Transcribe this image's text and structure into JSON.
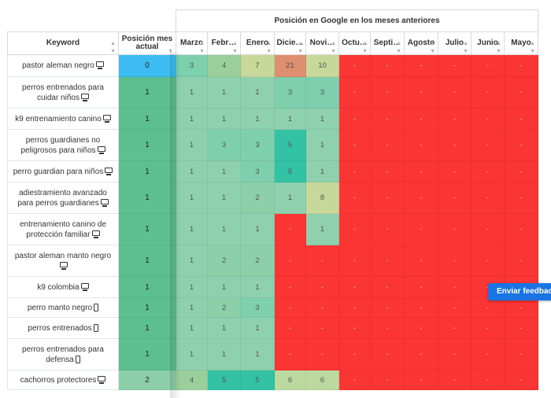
{
  "group_title": "Posición en Google en los meses anteriores",
  "headers": {
    "keyword": "Keyword",
    "current": "Posición mes actual",
    "months": [
      "Marzo",
      "Febr…",
      "Enero",
      "Dicie…",
      "Novi…",
      "Octu…",
      "Septi…",
      "Agosto",
      "Julio",
      "Junio",
      "Mayo"
    ]
  },
  "rows": [
    {
      "keyword": "pastor aleman negro",
      "device": "desktop",
      "current": "0",
      "values": [
        "3",
        "4",
        "7",
        "21",
        "10",
        "-",
        "-",
        "-",
        "-",
        "-",
        "-"
      ]
    },
    {
      "keyword": "perros entrenados para cuidar niños",
      "device": "desktop",
      "current": "1",
      "values": [
        "1",
        "1",
        "1",
        "3",
        "3",
        "-",
        "-",
        "-",
        "-",
        "-",
        "-"
      ]
    },
    {
      "keyword": "k9 entrenamiento canino",
      "device": "desktop",
      "current": "1",
      "values": [
        "1",
        "1",
        "1",
        "1",
        "1",
        "-",
        "-",
        "-",
        "-",
        "-",
        "-"
      ]
    },
    {
      "keyword": "perros guardianes no peligrosos para niños",
      "device": "desktop",
      "current": "1",
      "values": [
        "1",
        "3",
        "3",
        "5",
        "1",
        "-",
        "-",
        "-",
        "-",
        "-",
        "-"
      ]
    },
    {
      "keyword": "perro guardian para niños",
      "device": "desktop",
      "current": "1",
      "values": [
        "1",
        "1",
        "3",
        "5",
        "1",
        "-",
        "-",
        "-",
        "-",
        "-",
        "-"
      ]
    },
    {
      "keyword": "adiestramiento avanzado para perros guardianes",
      "device": "desktop",
      "current": "1",
      "values": [
        "1",
        "1",
        "2",
        "1",
        "8",
        "-",
        "-",
        "-",
        "-",
        "-",
        "-"
      ]
    },
    {
      "keyword": "entrenamiento canino de protección familiar",
      "device": "desktop",
      "current": "1",
      "values": [
        "1",
        "1",
        "1",
        "-",
        "1",
        "-",
        "-",
        "-",
        "-",
        "-",
        "-"
      ]
    },
    {
      "keyword": "pastor aleman manto negro",
      "device": "desktop",
      "current": "1",
      "values": [
        "1",
        "2",
        "2",
        "-",
        "-",
        "-",
        "-",
        "-",
        "-",
        "-",
        "-"
      ]
    },
    {
      "keyword": "k9 colombia",
      "device": "desktop",
      "current": "1",
      "values": [
        "1",
        "1",
        "1",
        "-",
        "-",
        "-",
        "-",
        "-",
        "-",
        "-",
        "-"
      ]
    },
    {
      "keyword": "perro manto negro",
      "device": "mobile",
      "current": "1",
      "values": [
        "1",
        "2",
        "3",
        "-",
        "-",
        "-",
        "-",
        "-",
        "-",
        "-",
        "-"
      ]
    },
    {
      "keyword": "perros entrenados",
      "device": "mobile",
      "current": "1",
      "values": [
        "1",
        "1",
        "1",
        "-",
        "-",
        "-",
        "-",
        "-",
        "-",
        "-",
        "-"
      ]
    },
    {
      "keyword": "perros entrenados para defensa",
      "device": "mobile",
      "current": "1",
      "values": [
        "1",
        "1",
        "1",
        "-",
        "-",
        "-",
        "-",
        "-",
        "-",
        "-",
        "-"
      ]
    },
    {
      "keyword": "cachorros protectores",
      "device": "desktop",
      "current": "2",
      "values": [
        "4",
        "5",
        "5",
        "6",
        "6",
        "-",
        "-",
        "-",
        "-",
        "-",
        "-"
      ]
    }
  ],
  "colors": {
    "rank0": "#3dbcf2",
    "rank1": "#5cbf8d",
    "rank2": "#6cc498",
    "rank3": "#4fc2a0",
    "rank5": "#33c3a4",
    "rank_mid": "#b8d69a",
    "rank_high": "#dd8f6f",
    "none": "#fb3434",
    "header_bg": "#ffffff",
    "feedback": "#1b74e4"
  },
  "feedback_label": "Enviar feedback"
}
